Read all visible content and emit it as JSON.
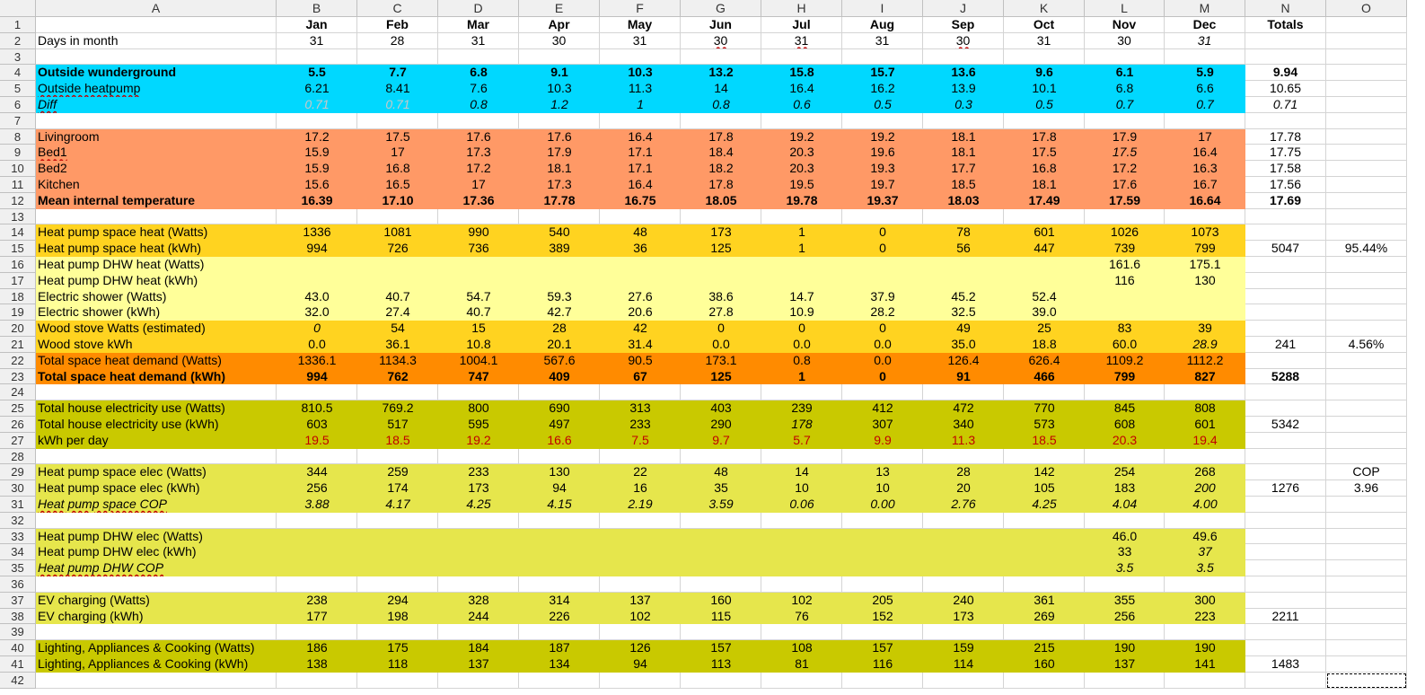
{
  "columns": [
    "A",
    "B",
    "C",
    "D",
    "E",
    "F",
    "G",
    "H",
    "I",
    "J",
    "K",
    "L",
    "M",
    "N",
    "O"
  ],
  "colors": {
    "cyan": "#00d8ff",
    "salmon": "#ff9966",
    "gold": "#ffd320",
    "lightyellow": "#ffff99",
    "orange": "#ff8b00",
    "olive": "#c9c900",
    "yellowgreen": "#e6e64c",
    "red_text": "#c00000"
  },
  "rows": [
    {
      "n": 1,
      "cells": [
        "",
        "Jan",
        "Feb",
        "Mar",
        "Apr",
        "May",
        "Jun",
        "Jul",
        "Aug",
        "Sep",
        "Oct",
        "Nov",
        "Dec",
        "Totals",
        ""
      ]
    },
    {
      "n": 2,
      "cells": [
        "Days in month",
        "31",
        "28",
        "31",
        "30",
        "31",
        "30",
        "31",
        "31",
        "30",
        "31",
        "30",
        "31",
        "",
        ""
      ]
    },
    {
      "n": 3,
      "cells": [
        "",
        "",
        "",
        "",
        "",
        "",
        "",
        "",
        "",
        "",
        "",
        "",
        "",
        "",
        ""
      ]
    },
    {
      "n": 4,
      "cells": [
        "Outside wunderground",
        "5.5",
        "7.7",
        "6.8",
        "9.1",
        "10.3",
        "13.2",
        "15.8",
        "15.7",
        "13.6",
        "9.6",
        "6.1",
        "5.9",
        "9.94",
        ""
      ]
    },
    {
      "n": 5,
      "cells": [
        "Outside heatpump",
        "6.21",
        "8.41",
        "7.6",
        "10.3",
        "11.3",
        "14",
        "16.4",
        "16.2",
        "13.9",
        "10.1",
        "6.8",
        "6.6",
        "10.65",
        ""
      ]
    },
    {
      "n": 6,
      "cells": [
        "Diff",
        "0.71",
        "0.71",
        "0.8",
        "1.2",
        "1",
        "0.8",
        "0.6",
        "0.5",
        "0.3",
        "0.5",
        "0.7",
        "0.7",
        "0.71",
        ""
      ]
    },
    {
      "n": 7,
      "cells": [
        "",
        "",
        "",
        "",
        "",
        "",
        "",
        "",
        "",
        "",
        "",
        "",
        "",
        "",
        ""
      ]
    },
    {
      "n": 8,
      "cells": [
        "Livingroom",
        "17.2",
        "17.5",
        "17.6",
        "17.6",
        "16.4",
        "17.8",
        "19.2",
        "19.2",
        "18.1",
        "17.8",
        "17.9",
        "17",
        "17.78",
        ""
      ]
    },
    {
      "n": 9,
      "cells": [
        "Bed1",
        "15.9",
        "17",
        "17.3",
        "17.9",
        "17.1",
        "18.4",
        "20.3",
        "19.6",
        "18.1",
        "17.5",
        "17.5",
        "16.4",
        "17.75",
        ""
      ]
    },
    {
      "n": 10,
      "cells": [
        "Bed2",
        "15.9",
        "16.8",
        "17.2",
        "18.1",
        "17.1",
        "18.2",
        "20.3",
        "19.3",
        "17.7",
        "16.8",
        "17.2",
        "16.3",
        "17.58",
        ""
      ]
    },
    {
      "n": 11,
      "cells": [
        "Kitchen",
        "15.6",
        "16.5",
        "17",
        "17.3",
        "16.4",
        "17.8",
        "19.5",
        "19.7",
        "18.5",
        "18.1",
        "17.6",
        "16.7",
        "17.56",
        ""
      ]
    },
    {
      "n": 12,
      "cells": [
        "Mean internal temperature",
        "16.39",
        "17.10",
        "17.36",
        "17.78",
        "16.75",
        "18.05",
        "19.78",
        "19.37",
        "18.03",
        "17.49",
        "17.59",
        "16.64",
        "17.69",
        ""
      ]
    },
    {
      "n": 13,
      "cells": [
        "",
        "",
        "",
        "",
        "",
        "",
        "",
        "",
        "",
        "",
        "",
        "",
        "",
        "",
        ""
      ]
    },
    {
      "n": 14,
      "cells": [
        "Heat pump space heat (Watts)",
        "1336",
        "1081",
        "990",
        "540",
        "48",
        "173",
        "1",
        "0",
        "78",
        "601",
        "1026",
        "1073",
        "",
        ""
      ]
    },
    {
      "n": 15,
      "cells": [
        "Heat pump space heat (kWh)",
        "994",
        "726",
        "736",
        "389",
        "36",
        "125",
        "1",
        "0",
        "56",
        "447",
        "739",
        "799",
        "5047",
        "95.44%"
      ]
    },
    {
      "n": 16,
      "cells": [
        "Heat pump DHW heat (Watts)",
        "",
        "",
        "",
        "",
        "",
        "",
        "",
        "",
        "",
        "",
        "161.6",
        "175.1",
        "",
        ""
      ]
    },
    {
      "n": 17,
      "cells": [
        "Heat pump DHW heat (kWh)",
        "",
        "",
        "",
        "",
        "",
        "",
        "",
        "",
        "",
        "",
        "116",
        "130",
        "",
        ""
      ]
    },
    {
      "n": 18,
      "cells": [
        "Electric shower (Watts)",
        "43.0",
        "40.7",
        "54.7",
        "59.3",
        "27.6",
        "38.6",
        "14.7",
        "37.9",
        "45.2",
        "52.4",
        "",
        "",
        "",
        ""
      ]
    },
    {
      "n": 19,
      "cells": [
        "Electric shower (kWh)",
        "32.0",
        "27.4",
        "40.7",
        "42.7",
        "20.6",
        "27.8",
        "10.9",
        "28.2",
        "32.5",
        "39.0",
        "",
        "",
        "",
        ""
      ]
    },
    {
      "n": 20,
      "cells": [
        "Wood stove Watts (estimated)",
        "0",
        "54",
        "15",
        "28",
        "42",
        "0",
        "0",
        "0",
        "49",
        "25",
        "83",
        "39",
        "",
        ""
      ]
    },
    {
      "n": 21,
      "cells": [
        "Wood stove kWh",
        "0.0",
        "36.1",
        "10.8",
        "20.1",
        "31.4",
        "0.0",
        "0.0",
        "0.0",
        "35.0",
        "18.8",
        "60.0",
        "28.9",
        "241",
        "4.56%"
      ]
    },
    {
      "n": 22,
      "cells": [
        "Total space heat demand (Watts)",
        "1336.1",
        "1134.3",
        "1004.1",
        "567.6",
        "90.5",
        "173.1",
        "0.8",
        "0.0",
        "126.4",
        "626.4",
        "1109.2",
        "1112.2",
        "",
        ""
      ]
    },
    {
      "n": 23,
      "cells": [
        "Total space heat demand (kWh)",
        "994",
        "762",
        "747",
        "409",
        "67",
        "125",
        "1",
        "0",
        "91",
        "466",
        "799",
        "827",
        "5288",
        ""
      ]
    },
    {
      "n": 24,
      "cells": [
        "",
        "",
        "",
        "",
        "",
        "",
        "",
        "",
        "",
        "",
        "",
        "",
        "",
        "",
        ""
      ]
    },
    {
      "n": 25,
      "cells": [
        "Total house electricity use (Watts)",
        "810.5",
        "769.2",
        "800",
        "690",
        "313",
        "403",
        "239",
        "412",
        "472",
        "770",
        "845",
        "808",
        "",
        ""
      ]
    },
    {
      "n": 26,
      "cells": [
        "Total house electricity use (kWh)",
        "603",
        "517",
        "595",
        "497",
        "233",
        "290",
        "178",
        "307",
        "340",
        "573",
        "608",
        "601",
        "5342",
        ""
      ]
    },
    {
      "n": 27,
      "cells": [
        "kWh per day",
        "19.5",
        "18.5",
        "19.2",
        "16.6",
        "7.5",
        "9.7",
        "5.7",
        "9.9",
        "11.3",
        "18.5",
        "20.3",
        "19.4",
        "",
        ""
      ]
    },
    {
      "n": 28,
      "cells": [
        "",
        "",
        "",
        "",
        "",
        "",
        "",
        "",
        "",
        "",
        "",
        "",
        "",
        "",
        ""
      ]
    },
    {
      "n": 29,
      "cells": [
        "Heat pump space elec (Watts)",
        "344",
        "259",
        "233",
        "130",
        "22",
        "48",
        "14",
        "13",
        "28",
        "142",
        "254",
        "268",
        "",
        "COP"
      ]
    },
    {
      "n": 30,
      "cells": [
        "Heat pump space elec (kWh)",
        "256",
        "174",
        "173",
        "94",
        "16",
        "35",
        "10",
        "10",
        "20",
        "105",
        "183",
        "200",
        "1276",
        "3.96"
      ]
    },
    {
      "n": 31,
      "cells": [
        "Heat pump space COP",
        "3.88",
        "4.17",
        "4.25",
        "4.15",
        "2.19",
        "3.59",
        "0.06",
        "0.00",
        "2.76",
        "4.25",
        "4.04",
        "4.00",
        "",
        ""
      ]
    },
    {
      "n": 32,
      "cells": [
        "",
        "",
        "",
        "",
        "",
        "",
        "",
        "",
        "",
        "",
        "",
        "",
        "",
        "",
        ""
      ]
    },
    {
      "n": 33,
      "cells": [
        "Heat pump DHW elec (Watts)",
        "",
        "",
        "",
        "",
        "",
        "",
        "",
        "",
        "",
        "",
        "46.0",
        "49.6",
        "",
        ""
      ]
    },
    {
      "n": 34,
      "cells": [
        "Heat pump DHW elec (kWh)",
        "",
        "",
        "",
        "",
        "",
        "",
        "",
        "",
        "",
        "",
        "33",
        "37",
        "",
        ""
      ]
    },
    {
      "n": 35,
      "cells": [
        "Heat pump DHW COP",
        "",
        "",
        "",
        "",
        "",
        "",
        "",
        "",
        "",
        "",
        "3.5",
        "3.5",
        "",
        ""
      ]
    },
    {
      "n": 36,
      "cells": [
        "",
        "",
        "",
        "",
        "",
        "",
        "",
        "",
        "",
        "",
        "",
        "",
        "",
        "",
        ""
      ]
    },
    {
      "n": 37,
      "cells": [
        "EV charging (Watts)",
        "238",
        "294",
        "328",
        "314",
        "137",
        "160",
        "102",
        "205",
        "240",
        "361",
        "355",
        "300",
        "",
        ""
      ]
    },
    {
      "n": 38,
      "cells": [
        "EV charging (kWh)",
        "177",
        "198",
        "244",
        "226",
        "102",
        "115",
        "76",
        "152",
        "173",
        "269",
        "256",
        "223",
        "2211",
        ""
      ]
    },
    {
      "n": 39,
      "cells": [
        "",
        "",
        "",
        "",
        "",
        "",
        "",
        "",
        "",
        "",
        "",
        "",
        "",
        "",
        ""
      ]
    },
    {
      "n": 40,
      "cells": [
        "Lighting, Appliances & Cooking (Watts)",
        "186",
        "175",
        "184",
        "187",
        "126",
        "157",
        "108",
        "157",
        "159",
        "215",
        "190",
        "190",
        "",
        ""
      ]
    },
    {
      "n": 41,
      "cells": [
        "Lighting, Appliances & Cooking (kWh)",
        "138",
        "118",
        "137",
        "134",
        "94",
        "113",
        "81",
        "116",
        "114",
        "160",
        "137",
        "141",
        "1483",
        ""
      ]
    },
    {
      "n": 42,
      "cells": [
        "",
        "",
        "",
        "",
        "",
        "",
        "",
        "",
        "",
        "",
        "",
        "",
        "",
        "",
        ""
      ]
    }
  ],
  "styles": {
    "1": {
      "bold": true
    },
    "4": {
      "bg": "cyan",
      "bold": true
    },
    "5": {
      "bg": "cyan"
    },
    "6": {
      "bg": "cyan",
      "ital": true
    },
    "8": {
      "bg": "salmon"
    },
    "9": {
      "bg": "salmon"
    },
    "10": {
      "bg": "salmon"
    },
    "11": {
      "bg": "salmon"
    },
    "12": {
      "bg": "salmon",
      "bold": true
    },
    "14": {
      "bg": "gold"
    },
    "15": {
      "bg": "gold"
    },
    "16": {
      "bg": "lightyellow"
    },
    "17": {
      "bg": "lightyellow"
    },
    "18": {
      "bg": "lightyellow"
    },
    "19": {
      "bg": "lightyellow"
    },
    "20": {
      "bg": "gold"
    },
    "21": {
      "bg": "gold"
    },
    "22": {
      "bg": "orange"
    },
    "23": {
      "bg": "orange",
      "bold": true
    },
    "25": {
      "bg": "olive"
    },
    "26": {
      "bg": "olive"
    },
    "27": {
      "bg": "olive",
      "red": true
    },
    "29": {
      "bg": "yellowgreen"
    },
    "30": {
      "bg": "yellowgreen"
    },
    "31": {
      "bg": "yellowgreen",
      "ital": true
    },
    "33": {
      "bg": "yellowgreen"
    },
    "34": {
      "bg": "yellowgreen"
    },
    "35": {
      "bg": "yellowgreen",
      "ital": true
    },
    "37": {
      "bg": "yellowgreen"
    },
    "38": {
      "bg": "yellowgreen"
    },
    "40": {
      "bg": "olive"
    },
    "41": {
      "bg": "olive"
    }
  },
  "special": {
    "italic_cells": [
      "1.12",
      "2.12",
      "8.11",
      "5.12",
      "6.12",
      "25.7",
      "29.12",
      "33.12",
      "19.1",
      "20.12",
      "30.0"
    ],
    "faded_cells": [
      "5.1",
      "5.2",
      "6.1",
      "6.2"
    ],
    "bold_totals": [
      "23.13",
      "26.13",
      "30.13",
      "38.13",
      "41.13",
      "12.13"
    ],
    "underlined_cells": [
      "4.0",
      "5.0",
      "8.0",
      "30.0",
      "34.0",
      "1.6",
      "1.7",
      "1.9"
    ],
    "selected_cell": "41.14"
  }
}
